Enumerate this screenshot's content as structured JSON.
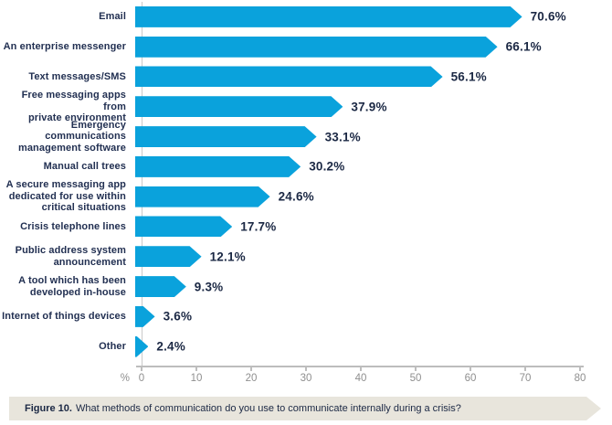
{
  "chart_data": {
    "type": "bar",
    "orientation": "horizontal",
    "title": "",
    "xlabel": "%",
    "ylabel": "",
    "xlim": [
      0,
      80
    ],
    "x_ticks": [
      0,
      10,
      20,
      30,
      40,
      50,
      60,
      70,
      80
    ],
    "grid": false,
    "legend": false,
    "bar_color": "#0aa2dc",
    "categories": [
      "Email",
      "An enterprise messenger",
      "Text messages/SMS",
      "Free messaging apps from\nprivate environment",
      "Emergency communications\nmanagement software",
      "Manual call trees",
      "A secure messaging app\ndedicated for use within\ncritical situations",
      "Crisis telephone lines",
      "Public address system\nannouncement",
      "A tool which has been\ndeveloped in-house",
      "Internet of things devices",
      "Other"
    ],
    "values": [
      70.6,
      66.1,
      56.1,
      37.9,
      33.1,
      30.2,
      24.6,
      17.7,
      12.1,
      9.3,
      3.6,
      2.4
    ],
    "value_labels": [
      "70.6%",
      "66.1%",
      "56.1%",
      "37.9%",
      "33.1%",
      "30.2%",
      "24.6%",
      "17.7%",
      "12.1%",
      "9.3%",
      "3.6%",
      "2.4%"
    ]
  },
  "axis": {
    "unit_symbol": "%"
  },
  "caption": {
    "label": "Figure 10.",
    "text": "What methods of communication do you use to communicate internally during a crisis?",
    "background": "#e8e5dc"
  }
}
